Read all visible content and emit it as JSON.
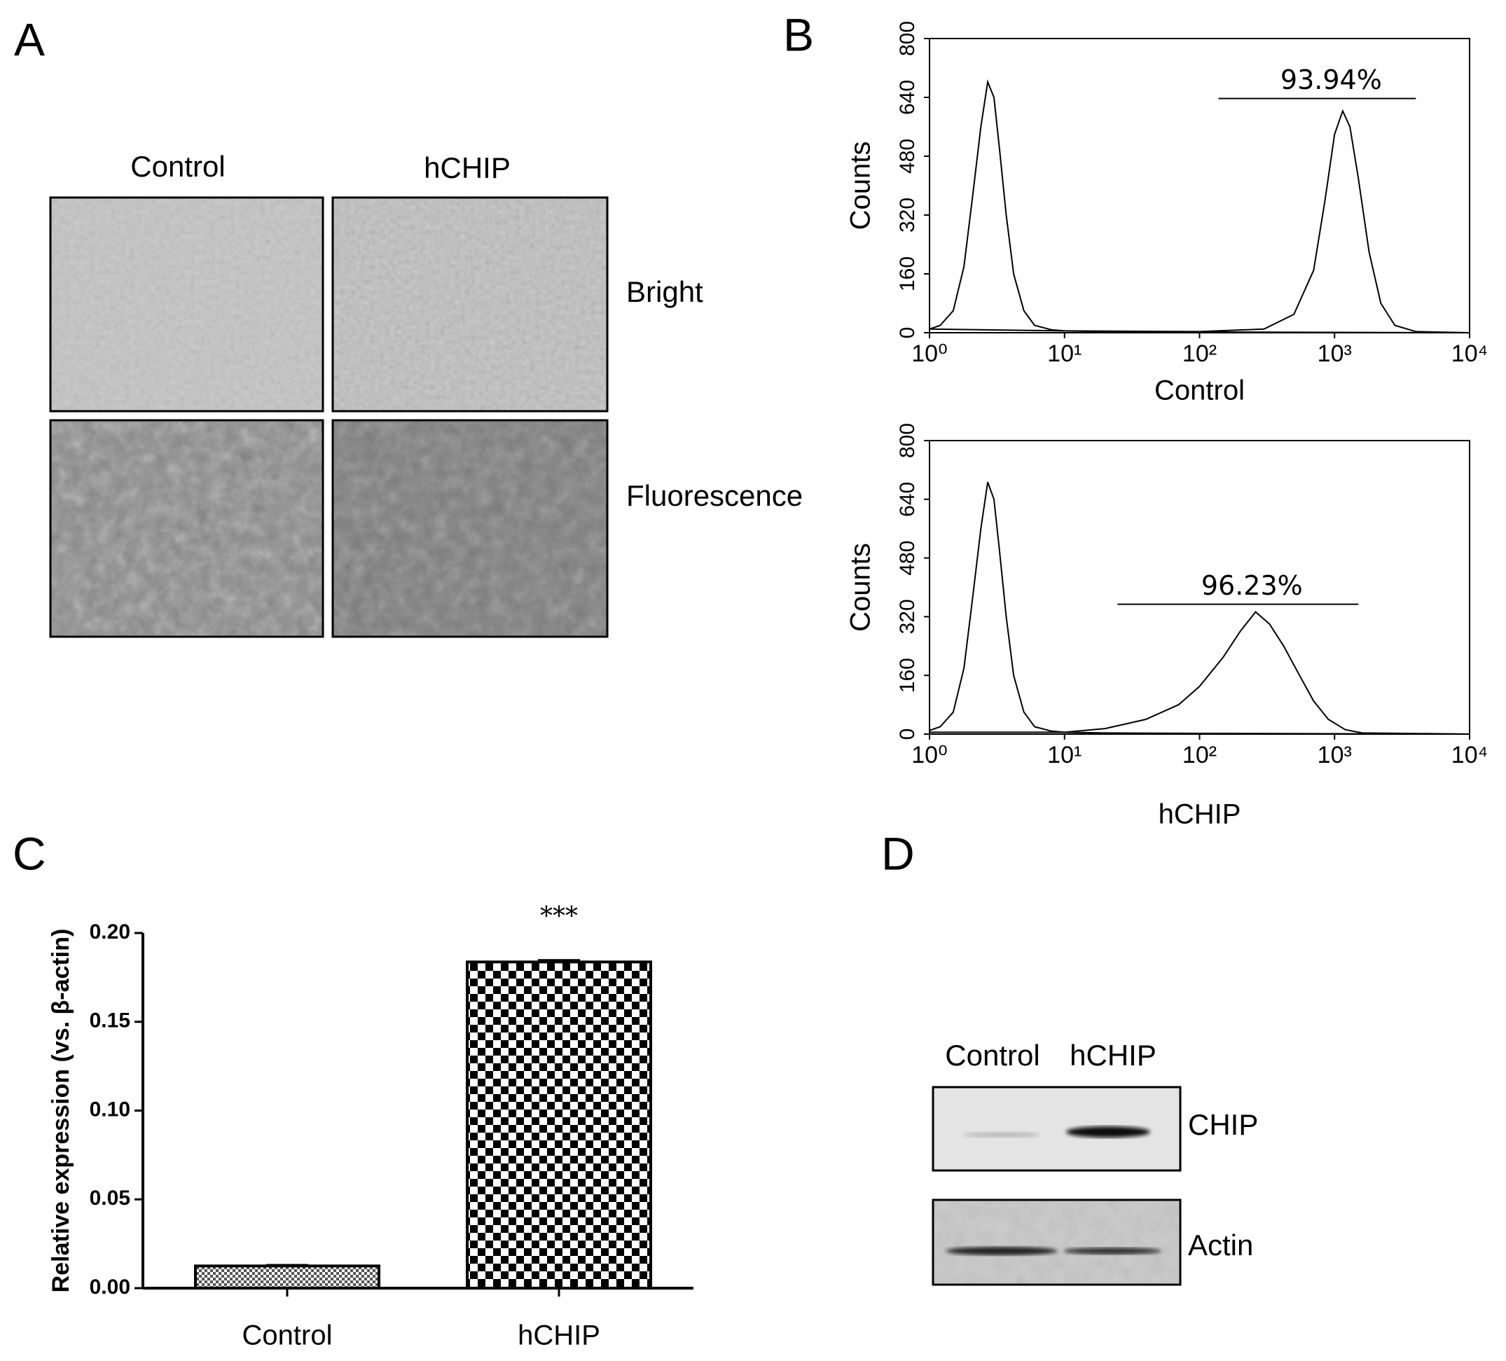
{
  "panel_labels": [
    "A",
    "B",
    "C",
    "D"
  ],
  "micrographs": {
    "columns": [
      "Control",
      "hCHIP"
    ],
    "rows": [
      "Bright",
      "Fluorescence"
    ]
  },
  "western_blot": {
    "lanes": [
      "Control",
      "hCHIP"
    ],
    "bands": [
      "CHIP",
      "Actin"
    ]
  },
  "chart_data": [
    {
      "type": "line",
      "x_label": "Control",
      "y_label": "Counts",
      "log_x": true,
      "xlim": [
        1,
        10000
      ],
      "xticks": [
        {
          "value": 1,
          "label": "10⁰"
        },
        {
          "value": 10,
          "label": "10¹"
        },
        {
          "value": 100,
          "label": "10²"
        },
        {
          "value": 1000,
          "label": "10³"
        },
        {
          "value": 10000,
          "label": "10⁴"
        }
      ],
      "ylim": [
        0,
        800
      ],
      "yticks": [
        0,
        160,
        320,
        480,
        640,
        800
      ],
      "series": [
        {
          "color": "#000000",
          "x": [
            1,
            1.2,
            1.5,
            1.8,
            2.1,
            2.4,
            2.7,
            3.0,
            3.3,
            3.7,
            4.2,
            5,
            6,
            8,
            10,
            20,
            100,
            1000,
            10000
          ],
          "values": [
            10,
            20,
            60,
            180,
            380,
            560,
            682,
            640,
            500,
            320,
            160,
            60,
            20,
            8,
            5,
            3,
            2,
            1,
            0
          ]
        },
        {
          "color": "#000000",
          "x": [
            1,
            10,
            100,
            300,
            500,
            700,
            850,
            1000,
            1150,
            1300,
            1500,
            1800,
            2200,
            2800,
            4000,
            10000
          ],
          "values": [
            10,
            5,
            3,
            10,
            50,
            170,
            360,
            540,
            603,
            560,
            420,
            220,
            80,
            20,
            3,
            0
          ]
        }
      ],
      "annotations": [
        {
          "text": "93.94%",
          "x": [
            138,
            4000
          ],
          "y": 637
        }
      ]
    },
    {
      "type": "line",
      "x_label": "hCHIP",
      "y_label": "Counts",
      "log_x": true,
      "xlim": [
        1,
        10000
      ],
      "xticks": [
        {
          "value": 1,
          "label": "10⁰"
        },
        {
          "value": 10,
          "label": "10¹"
        },
        {
          "value": 100,
          "label": "10²"
        },
        {
          "value": 1000,
          "label": "10³"
        },
        {
          "value": 10000,
          "label": "10⁴"
        }
      ],
      "ylim": [
        0,
        800
      ],
      "yticks": [
        0,
        160,
        320,
        480,
        640,
        800
      ],
      "series": [
        {
          "color": "#000000",
          "x": [
            1,
            1.2,
            1.5,
            1.8,
            2.1,
            2.4,
            2.7,
            3.0,
            3.3,
            3.7,
            4.2,
            5,
            6,
            8,
            10,
            20,
            100,
            1000,
            10000
          ],
          "values": [
            10,
            20,
            60,
            180,
            380,
            560,
            687,
            640,
            500,
            320,
            160,
            60,
            20,
            8,
            5,
            3,
            2,
            1,
            0
          ]
        },
        {
          "color": "#000000",
          "x": [
            1,
            10,
            20,
            40,
            70,
            100,
            150,
            200,
            260,
            330,
            420,
            550,
            700,
            900,
            1200,
            1600,
            10000
          ],
          "values": [
            5,
            5,
            15,
            40,
            80,
            130,
            210,
            280,
            333,
            300,
            240,
            160,
            90,
            40,
            12,
            3,
            0
          ]
        }
      ],
      "annotations": [
        {
          "text": "96.23%",
          "x": [
            24.7,
            1500
          ],
          "y": 354
        }
      ]
    },
    {
      "type": "bar",
      "y_label": "Relative expression (vs. β-actin)",
      "categories": [
        "Control",
        "hCHIP"
      ],
      "values": [
        0.0125,
        0.1837
      ],
      "errors": [
        0.0005,
        0.001
      ],
      "value_annotations": [
        null,
        "***"
      ],
      "ylim": [
        0,
        0.2
      ],
      "yticks": [
        {
          "value": 0,
          "label": "0.00"
        },
        {
          "value": 0.05,
          "label": "0.05"
        },
        {
          "value": 0.1,
          "label": "0.10"
        },
        {
          "value": 0.15,
          "label": "0.15"
        },
        {
          "value": 0.2,
          "label": "0.20"
        }
      ]
    }
  ]
}
